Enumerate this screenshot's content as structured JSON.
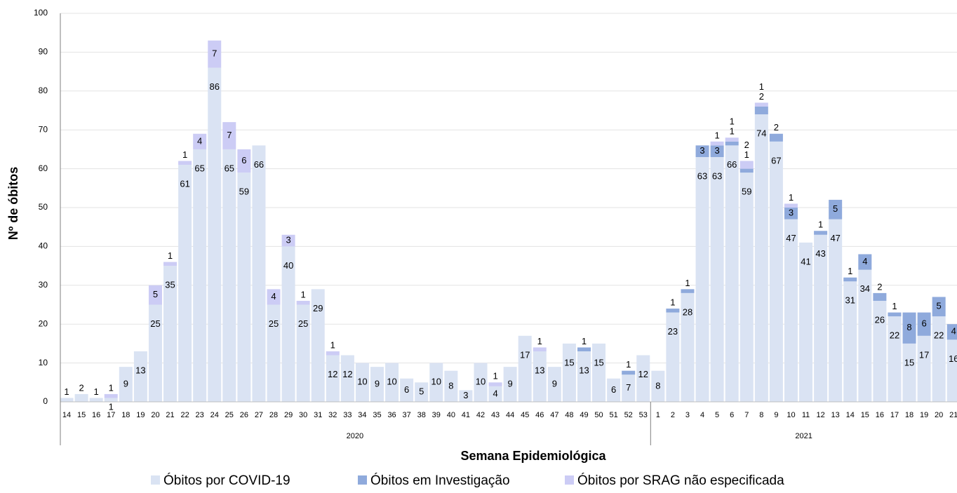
{
  "chart_data": {
    "type": "stacked_bar",
    "x_label": "Semana Epidemiológica",
    "y_label": "Nº de óbitos",
    "groups": [
      {
        "name": "2020",
        "categories": [
          "14",
          "15",
          "16",
          "17",
          "18",
          "19",
          "20",
          "21",
          "22",
          "23",
          "24",
          "25",
          "26",
          "27",
          "28",
          "29",
          "30",
          "31",
          "32",
          "33",
          "34",
          "35",
          "36",
          "37",
          "38",
          "39",
          "40",
          "41",
          "42",
          "43",
          "44",
          "45",
          "46",
          "47",
          "48",
          "49",
          "50",
          "51",
          "52",
          "53"
        ]
      },
      {
        "name": "2021",
        "categories": [
          "1",
          "2",
          "3",
          "4",
          "5",
          "6",
          "7",
          "8",
          "9",
          "10",
          "11",
          "12",
          "13",
          "14",
          "15",
          "16",
          "17",
          "18",
          "19",
          "20",
          "21"
        ]
      }
    ],
    "series": [
      {
        "name": "Óbitos por COVID-19",
        "color": "#dae3f3",
        "values": [
          1,
          2,
          1,
          1,
          9,
          13,
          25,
          35,
          61,
          65,
          86,
          65,
          59,
          66,
          25,
          40,
          25,
          29,
          12,
          12,
          10,
          9,
          10,
          6,
          5,
          10,
          8,
          3,
          10,
          4,
          9,
          17,
          13,
          9,
          15,
          13,
          15,
          6,
          7,
          12,
          8,
          23,
          28,
          63,
          63,
          66,
          59,
          74,
          67,
          47,
          41,
          43,
          47,
          31,
          34,
          26,
          22,
          15,
          17,
          22,
          16
        ]
      },
      {
        "name": "Óbitos em Investigação",
        "color": "#8faadc",
        "values": [
          null,
          null,
          null,
          null,
          null,
          null,
          null,
          null,
          null,
          null,
          null,
          null,
          null,
          null,
          null,
          null,
          null,
          null,
          null,
          null,
          null,
          null,
          null,
          null,
          null,
          null,
          null,
          null,
          null,
          null,
          null,
          null,
          null,
          null,
          null,
          1,
          null,
          null,
          1,
          null,
          null,
          1,
          1,
          3,
          3,
          1,
          1,
          2,
          2,
          3,
          null,
          1,
          5,
          1,
          4,
          2,
          1,
          8,
          6,
          5,
          4
        ]
      },
      {
        "name": "Óbitos por SRAG não especificada",
        "color": "#ccccf5",
        "values": [
          null,
          null,
          null,
          1,
          null,
          null,
          5,
          1,
          1,
          4,
          7,
          7,
          6,
          null,
          4,
          3,
          1,
          null,
          1,
          null,
          null,
          null,
          null,
          null,
          null,
          null,
          null,
          null,
          null,
          1,
          null,
          null,
          1,
          null,
          null,
          null,
          null,
          null,
          null,
          null,
          null,
          null,
          null,
          null,
          1,
          1,
          2,
          1,
          null,
          1,
          null,
          null,
          null,
          null,
          null,
          null,
          null,
          null,
          null,
          null,
          null
        ]
      }
    ],
    "ylim": [
      0,
      100
    ],
    "yticks": [
      0,
      10,
      20,
      30,
      40,
      50,
      60,
      70,
      80,
      90,
      100
    ],
    "grid": true
  }
}
